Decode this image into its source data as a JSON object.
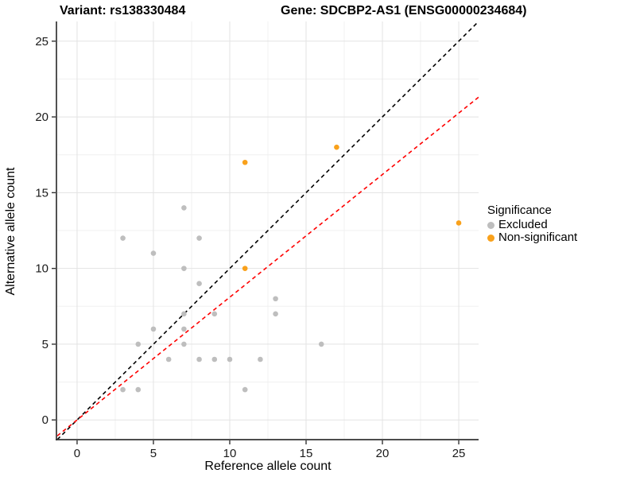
{
  "chart_data": {
    "type": "scatter",
    "title_left": "Variant: rs138330484",
    "title_right": "Gene: SDCBP2-AS1 (ENSG00000234684)",
    "xlabel": "Reference allele count",
    "ylabel": "Alternative allele count",
    "xlim": [
      -1.3,
      26.3
    ],
    "ylim": [
      -1.3,
      26.3
    ],
    "xticks": [
      0,
      5,
      10,
      15,
      20,
      25
    ],
    "yticks": [
      0,
      5,
      10,
      15,
      20,
      25
    ],
    "minor_ticks": [
      2.5,
      7.5,
      12.5,
      17.5,
      22.5
    ],
    "grid": true,
    "legend": {
      "title": "Significance",
      "position": "right"
    },
    "series": [
      {
        "name": "Excluded",
        "color": "#BEBEBE",
        "points": [
          [
            7,
            14
          ],
          [
            3,
            12
          ],
          [
            8,
            12
          ],
          [
            5,
            11
          ],
          [
            7,
            10
          ],
          [
            8,
            9
          ],
          [
            13,
            8
          ],
          [
            7,
            7
          ],
          [
            9,
            7
          ],
          [
            13,
            7
          ],
          [
            5,
            6
          ],
          [
            7,
            6
          ],
          [
            4,
            5
          ],
          [
            7,
            5
          ],
          [
            16,
            5
          ],
          [
            6,
            4
          ],
          [
            8,
            4
          ],
          [
            9,
            4
          ],
          [
            10,
            4
          ],
          [
            12,
            4
          ],
          [
            3,
            2
          ],
          [
            4,
            2
          ],
          [
            11,
            2
          ]
        ]
      },
      {
        "name": "Non-significant",
        "color": "#F9A11B",
        "points": [
          [
            11,
            17
          ],
          [
            17,
            18
          ],
          [
            11,
            10
          ],
          [
            25,
            13
          ]
        ]
      }
    ],
    "lines": [
      {
        "name": "identity-line",
        "color": "#000000",
        "slope": 1.0,
        "intercept": 0,
        "dash": "5,4"
      },
      {
        "name": "fit-line",
        "color": "#FF0000",
        "slope": 0.81,
        "intercept": 0,
        "dash": "5,4"
      }
    ],
    "style": {
      "major_grid_color": "#E3E3E3",
      "minor_grid_color": "#F0F0F0",
      "axis_line_color": "#333333",
      "tick_label_color": "#1a1a1a",
      "point_radius": 3.3
    }
  }
}
